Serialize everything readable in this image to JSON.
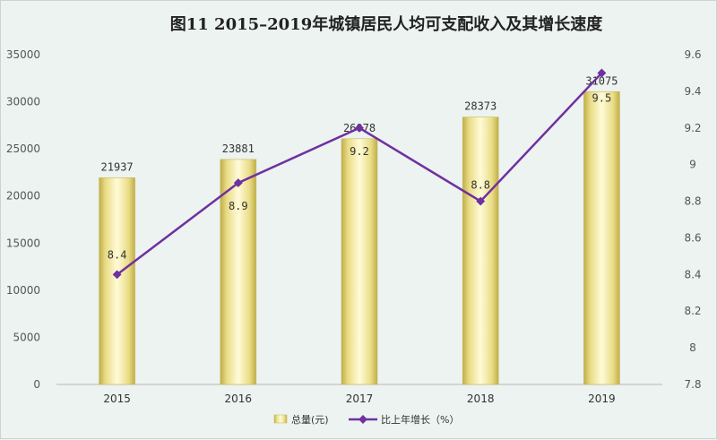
{
  "chart_data": {
    "type": "bar",
    "title": "图11  2015–2019年城镇居民人均可支配收入及其增长速度",
    "categories": [
      "2015",
      "2016",
      "2017",
      "2018",
      "2019"
    ],
    "series": [
      {
        "name": "总量(元)",
        "type": "bar",
        "axis": "left",
        "values": [
          21937,
          23881,
          26078,
          28373,
          31075
        ],
        "labels": [
          "21937",
          "23881",
          "26078",
          "28373",
          "31075"
        ],
        "color": "#e8dc8a"
      },
      {
        "name": "比上年增长（%）",
        "type": "line",
        "axis": "right",
        "values": [
          8.4,
          8.9,
          9.2,
          8.8,
          9.5
        ],
        "labels": [
          "8.4",
          "8.9",
          "9.2",
          "8.8",
          "9.5"
        ],
        "color": "#7030a0"
      }
    ],
    "y_left": {
      "min": 0,
      "max": 35000,
      "ticks": [
        "0",
        "5000",
        "10000",
        "15000",
        "20000",
        "25000",
        "30000",
        "35000"
      ]
    },
    "y_right": {
      "min": 7.8,
      "max": 9.6,
      "ticks": [
        "7.8",
        "8",
        "8.2",
        "8.4",
        "8.6",
        "8.8",
        "9",
        "9.2",
        "9.4",
        "9.6"
      ]
    },
    "grid": false,
    "legend_position": "bottom-right"
  }
}
